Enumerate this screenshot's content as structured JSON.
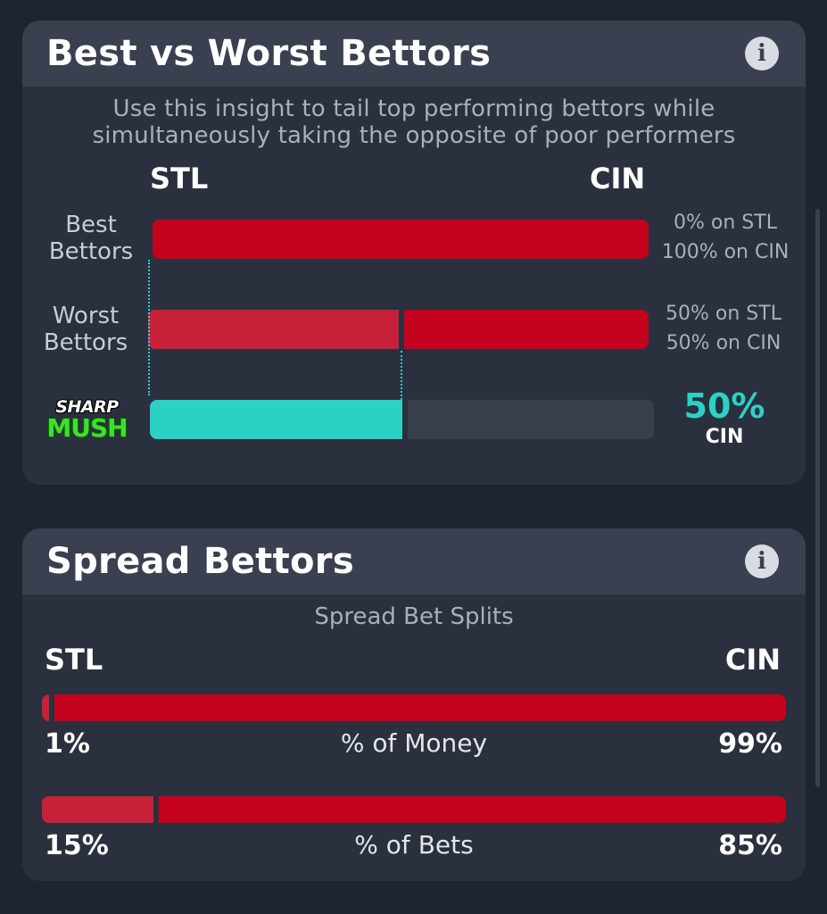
{
  "best_worst": {
    "title": "Best vs Worst Bettors",
    "subtitle_line1": "Use this insight to tail top performing bettors while",
    "subtitle_line2": "simultaneously taking the opposite of poor performers",
    "team_left": "STL",
    "team_right": "CIN",
    "best": {
      "label_line1": "Best",
      "label_line2": "Bettors",
      "stl_pct": 0,
      "cin_pct": 100,
      "text_stl": "0% on STL",
      "text_cin": "100% on CIN"
    },
    "worst": {
      "label_line1": "Worst",
      "label_line2": "Bettors",
      "stl_pct": 50,
      "cin_pct": 50,
      "text_stl": "50% on STL",
      "text_cin": "50% on CIN"
    },
    "sharp": {
      "logo_top": "SHARP",
      "logo_bottom": "MUSH",
      "fill_pct": 50,
      "value": "50%",
      "team": "CIN"
    }
  },
  "spread": {
    "title": "Spread Bettors",
    "caption": "Spread Bet Splits",
    "team_left": "STL",
    "team_right": "CIN",
    "money": {
      "label": "% of Money",
      "stl_pct": 1,
      "cin_pct": 99,
      "left_text": "1%",
      "right_text": "99%"
    },
    "bets": {
      "label": "% of Bets",
      "stl_pct": 15,
      "cin_pct": 85,
      "left_text": "15%",
      "right_text": "85%"
    }
  },
  "colors": {
    "accent_teal": "#2cd1c6",
    "bar_red": "#c4021e",
    "bar_red_light": "#c7213a",
    "card_bg": "#2a303e",
    "header_bg": "#3a4050"
  }
}
